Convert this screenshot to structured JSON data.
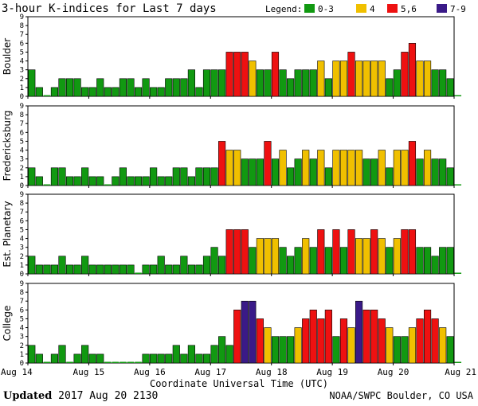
{
  "chart_data": {
    "type": "bar",
    "title": "3-hour K-indices for Last 7 days",
    "xlabel": "Coordinate Universal Time (UTC)",
    "ylim": [
      0,
      9
    ],
    "yticks": [
      0,
      1,
      2,
      3,
      4,
      5,
      6,
      7,
      8,
      9
    ],
    "x_tick_labels": [
      "Aug 14",
      "Aug 15",
      "Aug 16",
      "Aug 17",
      "Aug 18",
      "Aug 19",
      "Aug 20",
      "Aug 21"
    ],
    "bins_per_day": 8,
    "legend": {
      "label": "Legend:",
      "placement": "top-right",
      "entries": [
        {
          "name": "0-3",
          "color": "#119911",
          "min": 0,
          "max": 3
        },
        {
          "name": "4",
          "color": "#f0c000",
          "min": 4,
          "max": 4
        },
        {
          "name": "5,6",
          "color": "#ee1111",
          "min": 5,
          "max": 6
        },
        {
          "name": "7-9",
          "color": "#3a1a88",
          "min": 7,
          "max": 9
        }
      ]
    },
    "grid": false,
    "series": [
      {
        "name": "Boulder",
        "values": [
          3,
          1,
          0,
          1,
          2,
          2,
          2,
          1,
          1,
          2,
          1,
          1,
          2,
          2,
          1,
          2,
          1,
          1,
          2,
          2,
          2,
          3,
          1,
          3,
          3,
          3,
          5,
          5,
          5,
          4,
          3,
          3,
          5,
          3,
          2,
          3,
          3,
          3,
          4,
          2,
          4,
          4,
          5,
          4,
          4,
          4,
          4,
          2,
          3,
          5,
          6,
          4,
          4,
          3,
          3,
          2,
          0
        ]
      },
      {
        "name": "Fredericksburg",
        "values": [
          2,
          1,
          0,
          2,
          2,
          1,
          1,
          2,
          1,
          1,
          0,
          1,
          2,
          1,
          1,
          1,
          2,
          1,
          1,
          2,
          2,
          1,
          2,
          2,
          2,
          5,
          4,
          4,
          3,
          3,
          3,
          5,
          3,
          4,
          2,
          3,
          4,
          3,
          4,
          2,
          4,
          4,
          4,
          4,
          3,
          3,
          4,
          2,
          4,
          4,
          5,
          3,
          4,
          3,
          3,
          2,
          0
        ]
      },
      {
        "name": "Est. Planetary",
        "values": [
          2,
          1,
          1,
          1,
          2,
          1,
          1,
          2,
          1,
          1,
          1,
          1,
          1,
          1,
          0,
          1,
          1,
          2,
          1,
          1,
          2,
          1,
          1,
          2,
          3,
          2,
          5,
          5,
          5,
          3,
          4,
          4,
          4,
          3,
          2,
          3,
          4,
          3,
          5,
          3,
          5,
          3,
          5,
          4,
          4,
          5,
          4,
          3,
          4,
          5,
          5,
          3,
          3,
          2,
          3,
          3,
          0
        ]
      },
      {
        "name": "College",
        "values": [
          2,
          1,
          0,
          1,
          2,
          0,
          1,
          2,
          1,
          1,
          0,
          0,
          0,
          0,
          0,
          1,
          1,
          1,
          1,
          2,
          1,
          2,
          1,
          1,
          2,
          3,
          2,
          6,
          7,
          7,
          5,
          4,
          3,
          3,
          3,
          4,
          5,
          6,
          5,
          6,
          3,
          5,
          4,
          7,
          6,
          6,
          5,
          4,
          3,
          3,
          4,
          5,
          6,
          5,
          4,
          3,
          0
        ]
      }
    ]
  },
  "footer": {
    "updated_label": "Updated",
    "updated_value": "2017 Aug 20 2130",
    "source": "NOAA/SWPC Boulder, CO USA"
  }
}
